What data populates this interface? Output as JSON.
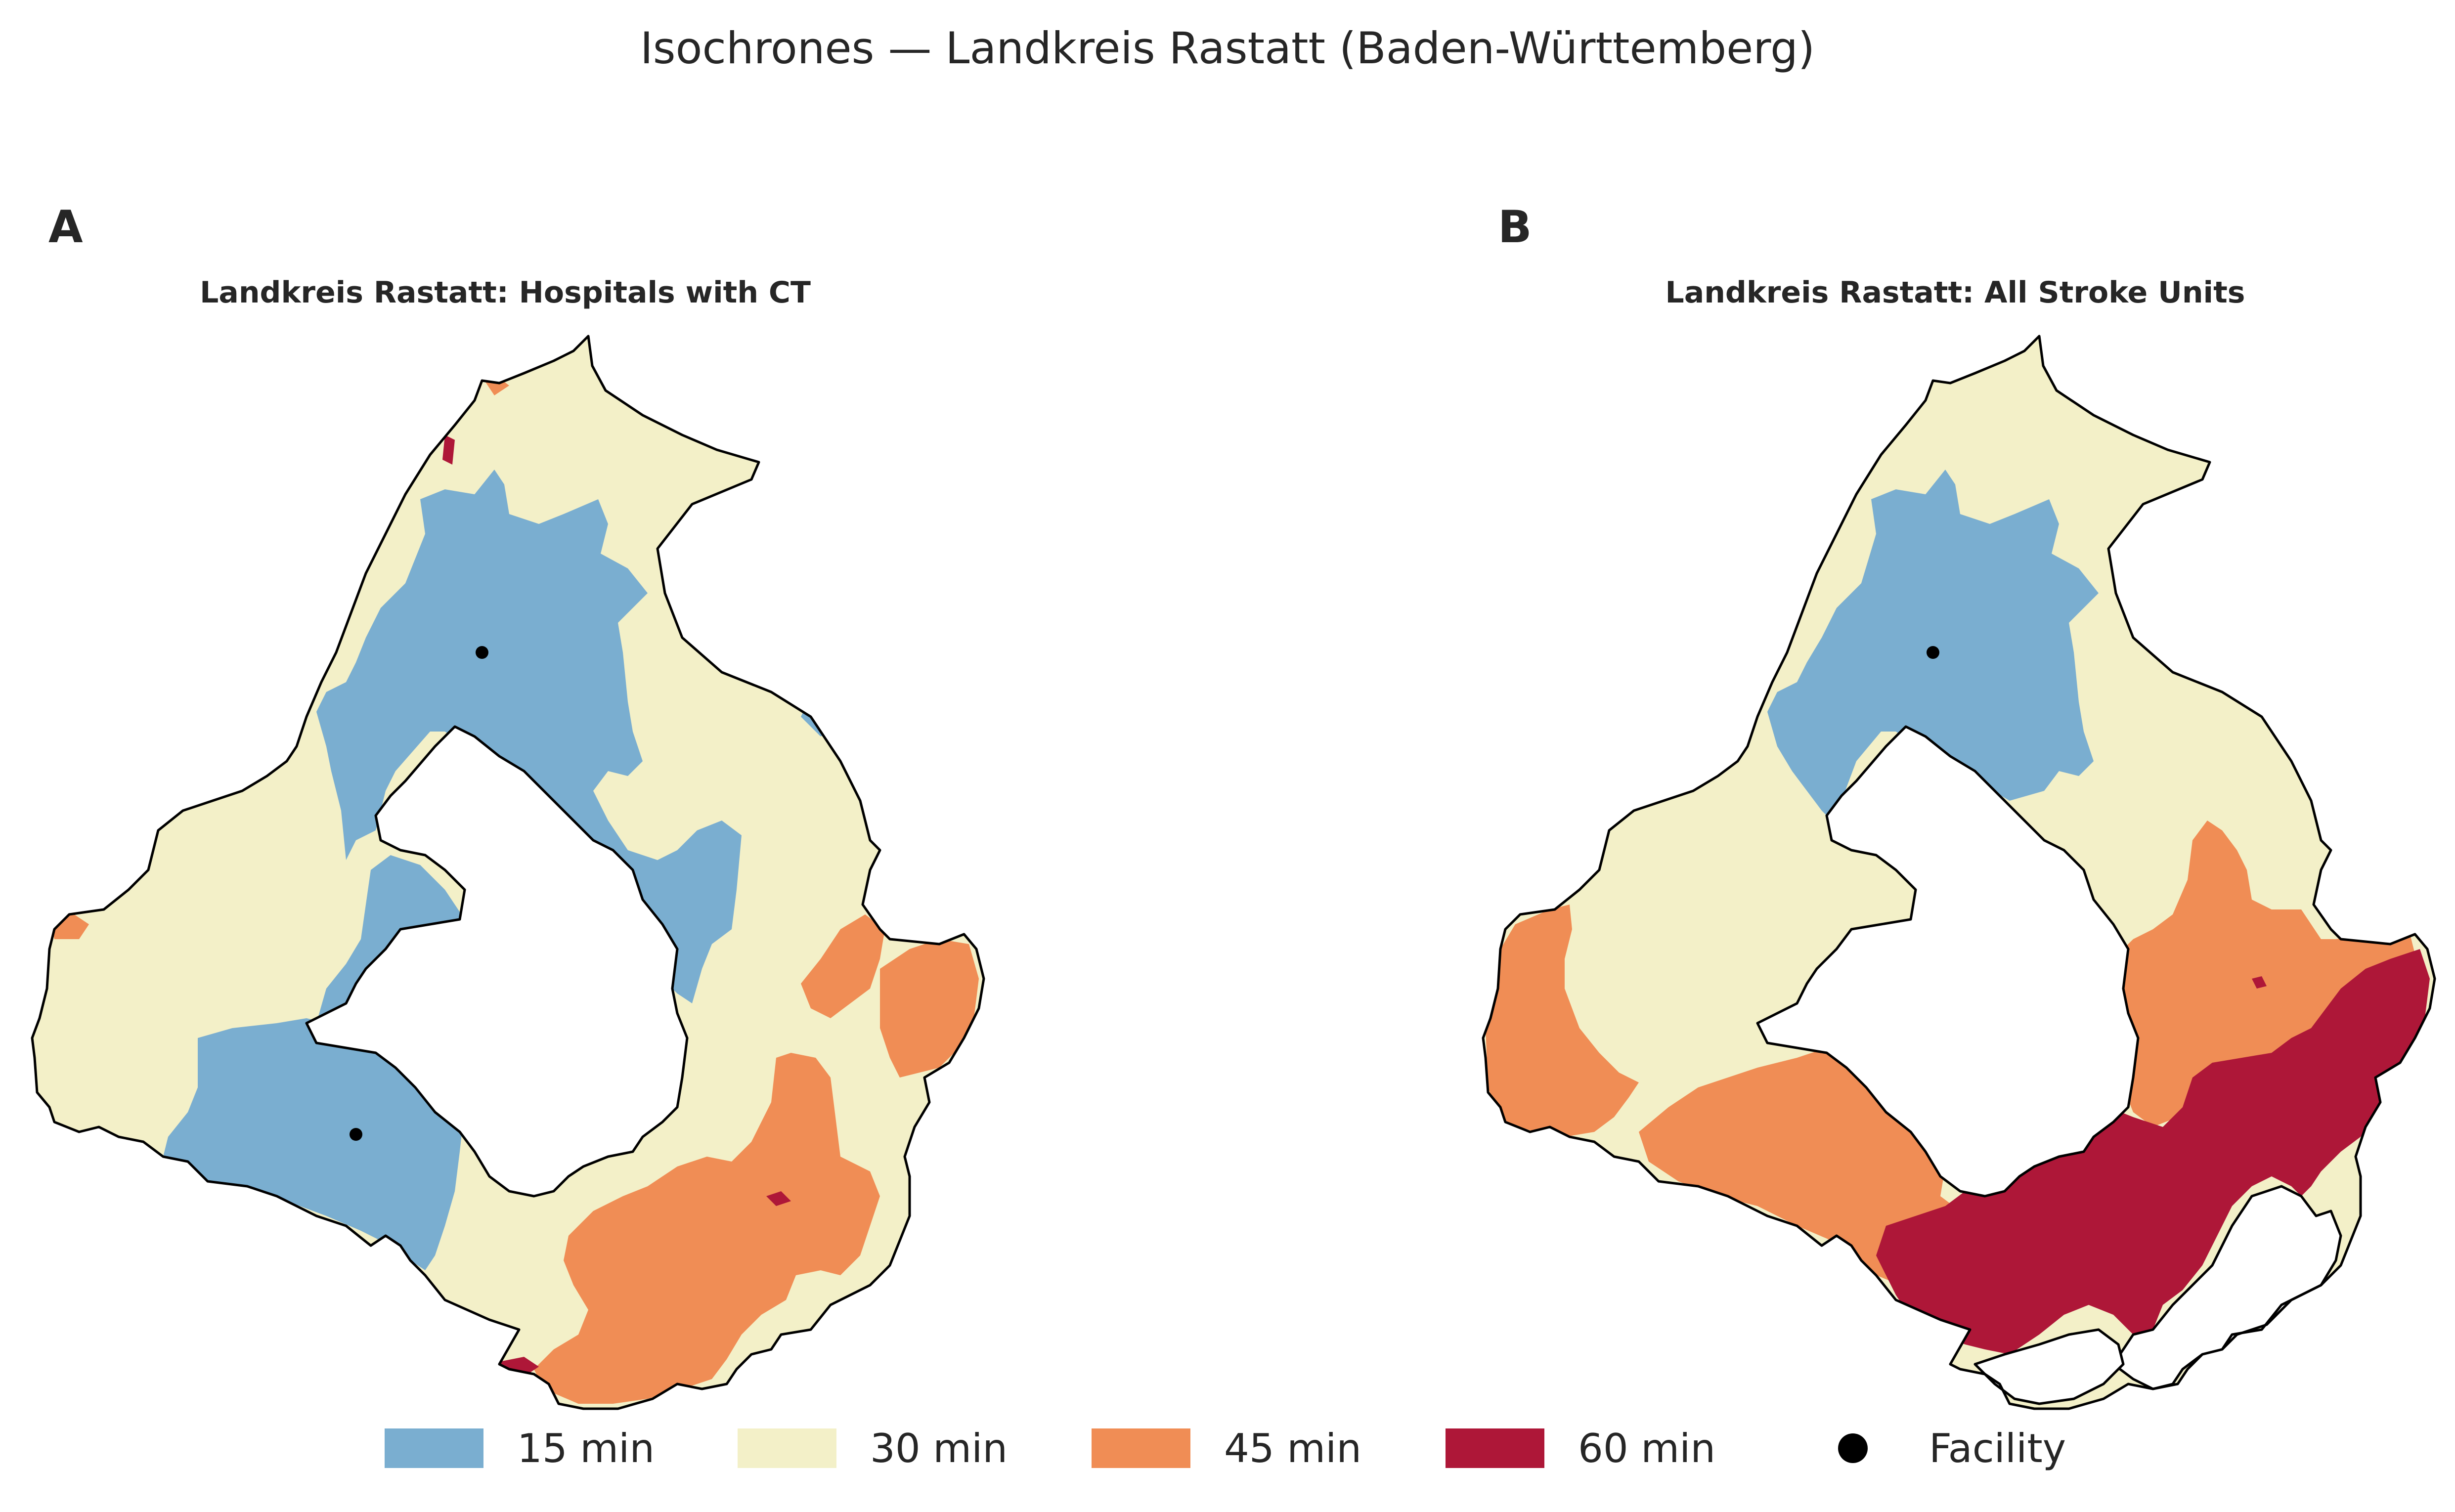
{
  "figure": {
    "title": "Isochrones — Landkreis Rastatt (Baden-Württemberg)"
  },
  "panels": [
    {
      "letter": "A",
      "title": "Landkreis Rastatt: Hospitals with CT"
    },
    {
      "letter": "B",
      "title": "Landkreis Rastatt: All Stroke Units"
    }
  ],
  "legend": {
    "items": [
      {
        "label": "15 min",
        "color": "#7aaed0",
        "kind": "swatch"
      },
      {
        "label": "30 min",
        "color": "#f3f0c8",
        "kind": "swatch"
      },
      {
        "label": "45 min",
        "color": "#f08d55",
        "kind": "swatch"
      },
      {
        "label": "60 min",
        "color": "#ae1738",
        "kind": "swatch"
      },
      {
        "label": "Facility",
        "color": "#000000",
        "kind": "marker"
      }
    ]
  }
}
